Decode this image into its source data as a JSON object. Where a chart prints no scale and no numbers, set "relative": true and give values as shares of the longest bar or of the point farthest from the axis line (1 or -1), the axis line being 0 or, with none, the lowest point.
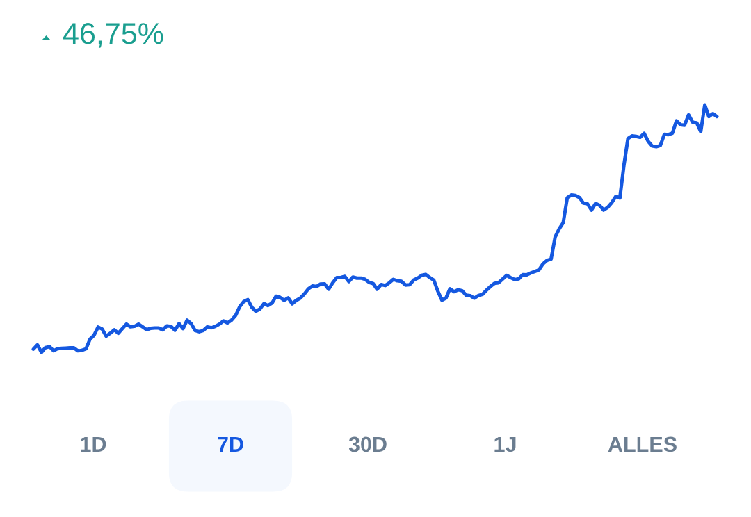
{
  "chart_data": {
    "type": "line",
    "title": "46,75%",
    "relative": true,
    "marker": "none",
    "line_style": "solid",
    "annotations": [
      "1D",
      "7D",
      "30D",
      "1J",
      "ALLES"
    ],
    "categories": [
      null,
      null,
      null,
      null,
      null,
      null,
      null,
      null,
      null,
      null,
      null,
      null,
      null,
      null,
      null,
      null,
      null,
      null,
      null,
      null,
      null,
      null,
      null,
      null,
      null,
      null,
      null,
      null,
      null,
      null,
      null,
      null,
      null,
      null,
      null,
      null,
      null,
      null,
      null,
      null,
      null,
      null,
      null,
      null,
      null,
      null,
      null,
      null,
      null,
      null,
      null,
      null,
      null,
      null,
      null,
      null,
      null,
      null,
      null,
      null,
      null,
      null,
      null,
      null,
      null,
      null,
      null,
      null,
      null,
      null,
      null,
      null,
      null,
      null,
      null,
      null,
      null,
      null,
      null,
      null,
      null,
      null,
      null,
      null,
      null,
      null,
      null,
      null,
      null,
      null,
      null,
      null,
      null,
      null,
      null,
      null,
      null,
      null,
      null,
      null,
      null,
      null,
      null,
      null,
      null,
      null,
      null,
      null,
      null,
      null,
      null,
      null,
      null,
      null,
      null,
      null,
      null,
      null,
      null,
      null,
      null,
      null,
      null,
      null,
      null,
      null,
      null,
      null,
      null,
      null,
      null,
      null,
      null,
      null,
      null,
      null,
      null,
      null,
      null,
      null,
      null,
      null,
      null,
      null,
      null,
      null,
      null,
      null,
      null,
      null,
      null,
      null,
      null,
      null,
      null,
      null,
      null,
      null,
      null,
      null,
      null,
      null,
      null,
      null,
      null,
      null,
      null,
      null,
      null,
      null
    ],
    "series": [
      {
        "color": "#1558e0",
        "values": [
          0.013,
          0.03,
          0,
          0.019,
          0.023,
          0.006,
          0.015,
          0.016,
          0.017,
          0.018,
          0.018,
          0.006,
          0.008,
          0.014,
          0.053,
          0.069,
          0.102,
          0.094,
          0.065,
          0.077,
          0.091,
          0.077,
          0.096,
          0.114,
          0.103,
          0.105,
          0.114,
          0.103,
          0.091,
          0.097,
          0.098,
          0.098,
          0.091,
          0.107,
          0.105,
          0.089,
          0.116,
          0.096,
          0.13,
          0.116,
          0.088,
          0.083,
          0.088,
          0.103,
          0.099,
          0.105,
          0.114,
          0.127,
          0.119,
          0.13,
          0.149,
          0.184,
          0.205,
          0.213,
          0.182,
          0.166,
          0.175,
          0.197,
          0.189,
          0.199,
          0.227,
          0.222,
          0.21,
          0.22,
          0.196,
          0.21,
          0.219,
          0.236,
          0.257,
          0.268,
          0.266,
          0.276,
          0.277,
          0.255,
          0.281,
          0.302,
          0.302,
          0.307,
          0.286,
          0.304,
          0.3,
          0.3,
          0.295,
          0.283,
          0.278,
          0.255,
          0.274,
          0.27,
          0.281,
          0.295,
          0.289,
          0.287,
          0.272,
          0.273,
          0.292,
          0.3,
          0.311,
          0.315,
          0.302,
          0.292,
          0.247,
          0.211,
          0.219,
          0.257,
          0.245,
          0.253,
          0.249,
          0.231,
          0.229,
          0.219,
          0.229,
          0.234,
          0.251,
          0.266,
          0.279,
          0.281,
          0.296,
          0.311,
          0.302,
          0.294,
          0.297,
          0.314,
          0.313,
          0.321,
          0.327,
          0.333,
          0.358,
          0.372,
          0.377,
          0.466,
          0.499,
          0.524,
          0.625,
          0.636,
          0.634,
          0.626,
          0.603,
          0.6,
          0.575,
          0.602,
          0.594,
          0.575,
          0.586,
          0.605,
          0.63,
          0.624,
          0.755,
          0.864,
          0.875,
          0.873,
          0.869,
          0.885,
          0.853,
          0.834,
          0.831,
          0.836,
          0.881,
          0.88,
          0.886,
          0.936,
          0.92,
          0.918,
          0.96,
          0.93,
          0.928,
          0.892,
          1,
          0.953,
          0.965,
          0.953
        ]
      }
    ]
  }
}
